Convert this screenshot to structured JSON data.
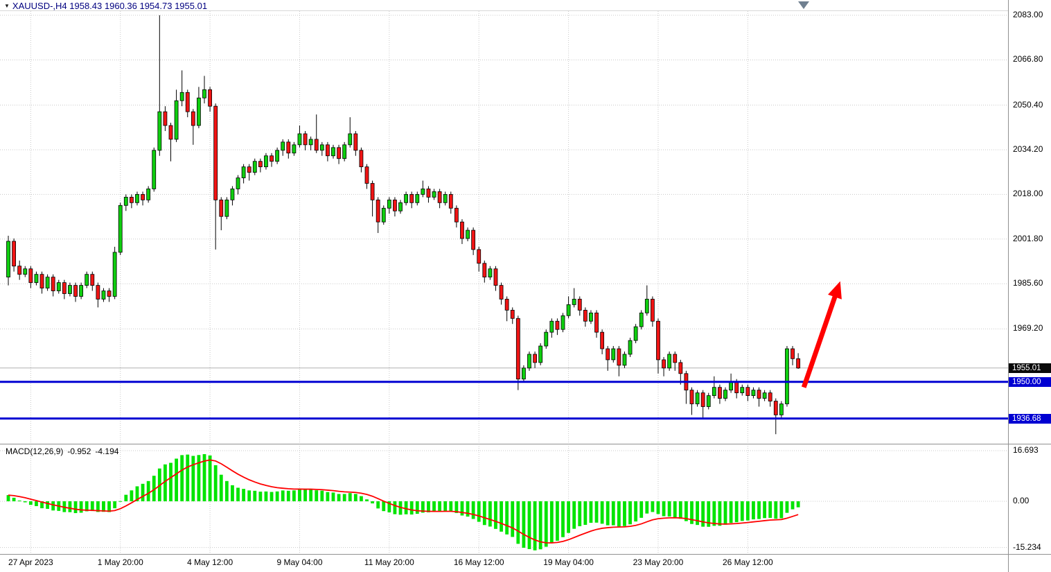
{
  "header": {
    "dropdown_icon": "▼",
    "title": "XAUUSD-,H4 1958.43 1960.36 1954.73 1955.01"
  },
  "price_scale": {
    "labels": [
      "2083.00",
      "2066.80",
      "2050.40",
      "2034.20",
      "2018.00",
      "2001.80",
      "1985.60",
      "1969.20"
    ]
  },
  "price_badges": {
    "current": "1955.01",
    "line1": "1950.00",
    "line2": "1936.68"
  },
  "time_axis": {
    "labels": [
      {
        "text": "27 Apr 2023",
        "index": 4
      },
      {
        "text": "1 May 20:00",
        "index": 20
      },
      {
        "text": "4 May 12:00",
        "index": 36
      },
      {
        "text": "9 May 04:00",
        "index": 52
      },
      {
        "text": "11 May 20:00",
        "index": 68
      },
      {
        "text": "16 May 12:00",
        "index": 84
      },
      {
        "text": "19 May 04:00",
        "index": 100
      },
      {
        "text": "23 May 20:00",
        "index": 116
      },
      {
        "text": "26 May 12:00",
        "index": 132
      }
    ]
  },
  "macd_panel": {
    "label": "MACD(12,26,9)",
    "value_main": "-0.952",
    "value_signal": "-4.194",
    "scale_labels": [
      "16.693",
      "0.00",
      "-15.234"
    ],
    "scale_values": [
      16.693,
      0,
      -15.234
    ]
  },
  "colors": {
    "bull": "#0fce0f",
    "bear": "#f01414",
    "outline": "#000000",
    "grid": "#c8c8c8",
    "hline": "#0000d2",
    "bid_line": "#b0b0b0",
    "macd_hist": "#00e400",
    "macd_signal": "#ff0000",
    "arrow": "#ff0000",
    "title": "#000080",
    "badge_current_bg": "#0a0a0a",
    "badge_line_bg": "#0000d2"
  },
  "annotations": {
    "arrow": {
      "from": {
        "index": 142,
        "price": 1948
      },
      "to": {
        "index": 148.5,
        "price": 1986.5
      },
      "color": "#ff0000",
      "width": 7
    }
  },
  "chart_data": {
    "type": "candlestick",
    "symbol": "XAUUSD-",
    "timeframe": "H4",
    "last_ohlc": {
      "open": 1958.43,
      "high": 1960.36,
      "low": 1954.73,
      "close": 1955.01
    },
    "current_price": 1955.01,
    "horizontal_lines": [
      1950.0,
      1936.68
    ],
    "y_axis": {
      "ticks": [
        2083.0,
        2066.8,
        2050.4,
        2034.2,
        2018.0,
        2001.8,
        1985.6,
        1969.2
      ]
    },
    "indicator": {
      "name": "MACD",
      "fast": 12,
      "slow": 26,
      "signal": 9,
      "last_main": -0.952,
      "last_signal": -4.194,
      "scale": [
        16.693,
        0.0,
        -15.234
      ],
      "legend_position": "top-left"
    },
    "grid": "dotted",
    "candles": [
      [
        1988,
        2003,
        1985,
        2001
      ],
      [
        2001,
        2002,
        1990,
        1992
      ],
      [
        1992,
        1994,
        1987,
        1989
      ],
      [
        1989,
        1992,
        1988,
        1991
      ],
      [
        1991,
        1992,
        1984,
        1986
      ],
      [
        1986,
        1990,
        1985,
        1989
      ],
      [
        1989,
        1990,
        1982,
        1984
      ],
      [
        1984,
        1989,
        1983,
        1988
      ],
      [
        1988,
        1989,
        1981,
        1983
      ],
      [
        1983,
        1987,
        1982,
        1986
      ],
      [
        1986,
        1987,
        1980,
        1982
      ],
      [
        1982,
        1986,
        1981,
        1985
      ],
      [
        1985,
        1986,
        1979,
        1981
      ],
      [
        1981,
        1986,
        1980,
        1985
      ],
      [
        1985,
        1990,
        1984,
        1989
      ],
      [
        1989,
        1990,
        1983,
        1985
      ],
      [
        1985,
        1986,
        1977,
        1980
      ],
      [
        1980,
        1984,
        1979,
        1983
      ],
      [
        1983,
        1984,
        1979,
        1981
      ],
      [
        1981,
        1999,
        1980,
        1997
      ],
      [
        1997,
        2015,
        1996,
        2014
      ],
      [
        2014,
        2018,
        2012,
        2017
      ],
      [
        2017,
        2018,
        2013,
        2015
      ],
      [
        2015,
        2019,
        2014,
        2018
      ],
      [
        2018,
        2019,
        2014,
        2016
      ],
      [
        2016,
        2021,
        2015,
        2020
      ],
      [
        2020,
        2035,
        2019,
        2034
      ],
      [
        2034,
        2083,
        2032,
        2048
      ],
      [
        2048,
        2050,
        2041,
        2043
      ],
      [
        2043,
        2044,
        2030,
        2038
      ],
      [
        2038,
        2056,
        2037,
        2052
      ],
      [
        2052,
        2063,
        2050,
        2055
      ],
      [
        2055,
        2056,
        2046,
        2048
      ],
      [
        2048,
        2049,
        2036,
        2043
      ],
      [
        2043,
        2057,
        2042,
        2053
      ],
      [
        2053,
        2061,
        2051,
        2056
      ],
      [
        2056,
        2057,
        2048,
        2050
      ],
      [
        2050,
        2051,
        1998,
        2016
      ],
      [
        2016,
        2017,
        2005,
        2010
      ],
      [
        2010,
        2017,
        2009,
        2016
      ],
      [
        2016,
        2021,
        2014,
        2020
      ],
      [
        2020,
        2025,
        2018,
        2024
      ],
      [
        2024,
        2029,
        2022,
        2028
      ],
      [
        2028,
        2029,
        2023,
        2026
      ],
      [
        2026,
        2031,
        2025,
        2030
      ],
      [
        2030,
        2031,
        2026,
        2028
      ],
      [
        2028,
        2033,
        2027,
        2032
      ],
      [
        2032,
        2033,
        2028,
        2030
      ],
      [
        2030,
        2035,
        2029,
        2034
      ],
      [
        2034,
        2038,
        2032,
        2037
      ],
      [
        2037,
        2038,
        2031,
        2033
      ],
      [
        2033,
        2037,
        2032,
        2036
      ],
      [
        2036,
        2043,
        2035,
        2040
      ],
      [
        2040,
        2041,
        2034,
        2036
      ],
      [
        2036,
        2039,
        2034,
        2038
      ],
      [
        2038,
        2047,
        2033,
        2034
      ],
      [
        2034,
        2037,
        2032,
        2036
      ],
      [
        2036,
        2037,
        2030,
        2032
      ],
      [
        2032,
        2036,
        2031,
        2035
      ],
      [
        2035,
        2036,
        2029,
        2031
      ],
      [
        2031,
        2037,
        2030,
        2036
      ],
      [
        2036,
        2046,
        2035,
        2040
      ],
      [
        2040,
        2041,
        2032,
        2034
      ],
      [
        2034,
        2035,
        2026,
        2028
      ],
      [
        2028,
        2029,
        2020,
        2022
      ],
      [
        2022,
        2023,
        2010,
        2016
      ],
      [
        2016,
        2017,
        2004,
        2008
      ],
      [
        2008,
        2014,
        2007,
        2013
      ],
      [
        2013,
        2017,
        2011,
        2016
      ],
      [
        2016,
        2017,
        2010,
        2012
      ],
      [
        2012,
        2016,
        2011,
        2015
      ],
      [
        2015,
        2019,
        2014,
        2018
      ],
      [
        2018,
        2019,
        2013,
        2015
      ],
      [
        2015,
        2019,
        2014,
        2018
      ],
      [
        2018,
        2023,
        2017,
        2020
      ],
      [
        2020,
        2021,
        2015,
        2017
      ],
      [
        2017,
        2020,
        2016,
        2019
      ],
      [
        2019,
        2020,
        2013,
        2015
      ],
      [
        2015,
        2019,
        2014,
        2018
      ],
      [
        2018,
        2019,
        2011,
        2013
      ],
      [
        2013,
        2014,
        2006,
        2008
      ],
      [
        2008,
        2009,
        2000,
        2002
      ],
      [
        2002,
        2006,
        2001,
        2005
      ],
      [
        2005,
        2006,
        1996,
        1998
      ],
      [
        1998,
        1999,
        1990,
        1993
      ],
      [
        1993,
        1994,
        1986,
        1988
      ],
      [
        1988,
        1992,
        1987,
        1991
      ],
      [
        1991,
        1992,
        1983,
        1985
      ],
      [
        1985,
        1986,
        1978,
        1980
      ],
      [
        1980,
        1981,
        1972,
        1976
      ],
      [
        1976,
        1977,
        1971,
        1973
      ],
      [
        1973,
        1974,
        1947,
        1951
      ],
      [
        1951,
        1956,
        1950,
        1955
      ],
      [
        1955,
        1961,
        1954,
        1960
      ],
      [
        1960,
        1961,
        1955,
        1957
      ],
      [
        1957,
        1964,
        1956,
        1963
      ],
      [
        1963,
        1969,
        1962,
        1968
      ],
      [
        1968,
        1973,
        1966,
        1972
      ],
      [
        1972,
        1973,
        1967,
        1969
      ],
      [
        1969,
        1975,
        1968,
        1974
      ],
      [
        1974,
        1981,
        1973,
        1978
      ],
      [
        1978,
        1984,
        1977,
        1980
      ],
      [
        1980,
        1981,
        1974,
        1976
      ],
      [
        1976,
        1977,
        1970,
        1972
      ],
      [
        1972,
        1976,
        1971,
        1975
      ],
      [
        1975,
        1976,
        1966,
        1968
      ],
      [
        1968,
        1969,
        1960,
        1962
      ],
      [
        1962,
        1963,
        1954,
        1958
      ],
      [
        1958,
        1963,
        1957,
        1962
      ],
      [
        1962,
        1963,
        1952,
        1956
      ],
      [
        1956,
        1961,
        1955,
        1960
      ],
      [
        1960,
        1966,
        1959,
        1965
      ],
      [
        1965,
        1971,
        1964,
        1970
      ],
      [
        1970,
        1976,
        1969,
        1975
      ],
      [
        1975,
        1985,
        1974,
        1980
      ],
      [
        1980,
        1981,
        1970,
        1972
      ],
      [
        1972,
        1973,
        1953,
        1958
      ],
      [
        1958,
        1959,
        1952,
        1955
      ],
      [
        1955,
        1961,
        1954,
        1960
      ],
      [
        1960,
        1961,
        1954,
        1957
      ],
      [
        1957,
        1958,
        1949,
        1953
      ],
      [
        1953,
        1954,
        1942,
        1947
      ],
      [
        1947,
        1948,
        1938,
        1942
      ],
      [
        1942,
        1947,
        1941,
        1946
      ],
      [
        1946,
        1947,
        1937,
        1941
      ],
      [
        1941,
        1946,
        1940,
        1945
      ],
      [
        1945,
        1952,
        1944,
        1948
      ],
      [
        1948,
        1949,
        1942,
        1944
      ],
      [
        1944,
        1948,
        1943,
        1947
      ],
      [
        1947,
        1953,
        1946,
        1950
      ],
      [
        1950,
        1951,
        1944,
        1946
      ],
      [
        1946,
        1949,
        1945,
        1948
      ],
      [
        1948,
        1949,
        1943,
        1945
      ],
      [
        1945,
        1948,
        1944,
        1947
      ],
      [
        1947,
        1948,
        1941,
        1944
      ],
      [
        1944,
        1947,
        1943,
        1946
      ],
      [
        1946,
        1947,
        1941,
        1943
      ],
      [
        1943,
        1944,
        1931,
        1938
      ],
      [
        1938,
        1943,
        1937,
        1942
      ],
      [
        1942,
        1963,
        1941,
        1962
      ],
      [
        1962,
        1963,
        1956,
        1958.4
      ],
      [
        1958.4,
        1960.4,
        1954.7,
        1955.0
      ]
    ]
  }
}
